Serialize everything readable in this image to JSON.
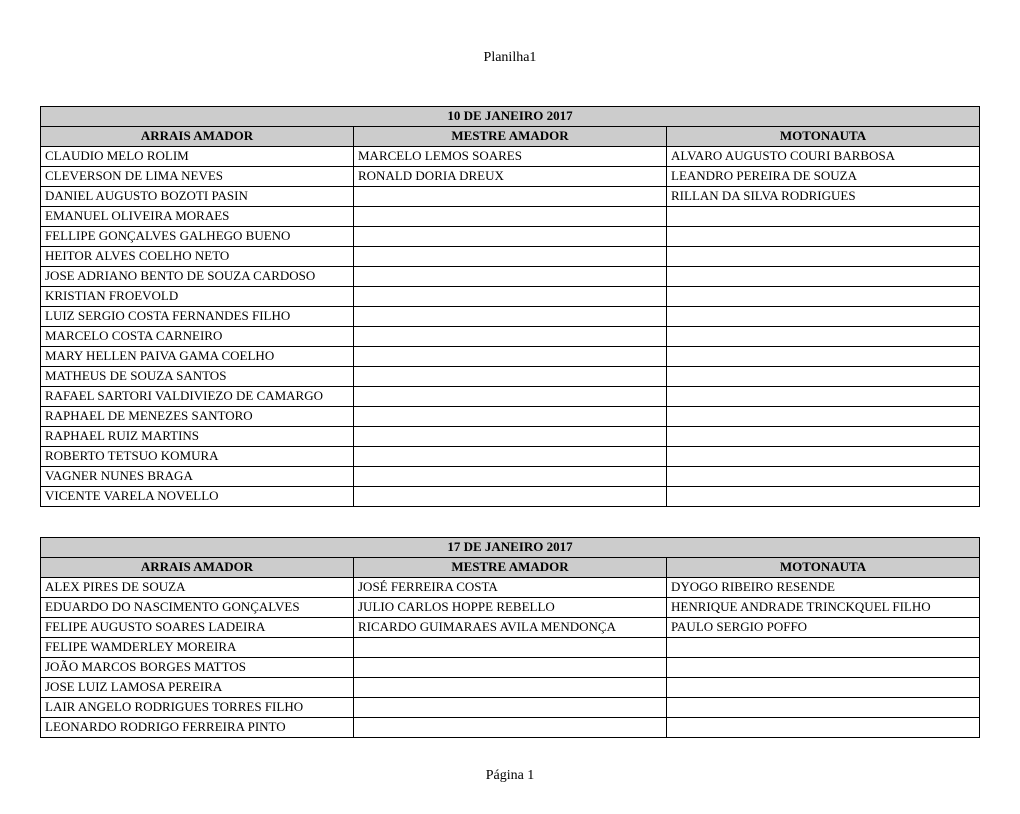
{
  "sheet_title": "Planilha1",
  "footer": "Página 1",
  "column_headers": [
    "ARRAIS AMADOR",
    "MESTRE AMADOR",
    "MOTONAUTA"
  ],
  "colors": {
    "header_bg": "#cccccc",
    "border": "#000000",
    "page_bg": "#ffffff",
    "text": "#000000"
  },
  "tables": [
    {
      "date": "10 DE JANEIRO 2017",
      "rows": [
        [
          "CLAUDIO MELO ROLIM",
          "MARCELO LEMOS SOARES",
          "ALVARO AUGUSTO COURI BARBOSA"
        ],
        [
          "CLEVERSON DE LIMA NEVES",
          "RONALD DORIA DREUX",
          "LEANDRO PEREIRA DE SOUZA"
        ],
        [
          "DANIEL AUGUSTO BOZOTI PASIN",
          "",
          "RILLAN DA SILVA RODRIGUES"
        ],
        [
          "EMANUEL OLIVEIRA MORAES",
          "",
          ""
        ],
        [
          "FELLIPE GONÇALVES GALHEGO BUENO",
          "",
          ""
        ],
        [
          "HEITOR ALVES COELHO NETO",
          "",
          ""
        ],
        [
          "JOSE ADRIANO BENTO DE SOUZA CARDOSO",
          "",
          ""
        ],
        [
          "KRISTIAN FROEVOLD",
          "",
          ""
        ],
        [
          "LUIZ SERGIO COSTA FERNANDES FILHO",
          "",
          ""
        ],
        [
          "MARCELO COSTA CARNEIRO",
          "",
          ""
        ],
        [
          "MARY HELLEN PAIVA GAMA COELHO",
          "",
          ""
        ],
        [
          "MATHEUS DE SOUZA SANTOS",
          "",
          ""
        ],
        [
          "RAFAEL SARTORI VALDIVIEZO DE CAMARGO",
          "",
          ""
        ],
        [
          "RAPHAEL DE MENEZES SANTORO",
          "",
          ""
        ],
        [
          "RAPHAEL RUIZ MARTINS",
          "",
          ""
        ],
        [
          "ROBERTO TETSUO KOMURA",
          "",
          ""
        ],
        [
          "VAGNER NUNES BRAGA",
          "",
          ""
        ],
        [
          "VICENTE VARELA NOVELLO",
          "",
          ""
        ]
      ]
    },
    {
      "date": "17 DE JANEIRO 2017",
      "rows": [
        [
          "ALEX PIRES DE SOUZA",
          "JOSÉ FERREIRA COSTA",
          "DYOGO RIBEIRO RESENDE"
        ],
        [
          "EDUARDO DO NASCIMENTO GONÇALVES",
          "JULIO CARLOS HOPPE REBELLO",
          "HENRIQUE ANDRADE TRINCKQUEL FILHO"
        ],
        [
          "FELIPE AUGUSTO SOARES LADEIRA",
          "RICARDO GUIMARAES AVILA MENDONÇA",
          "PAULO SERGIO POFFO"
        ],
        [
          "FELIPE WAMDERLEY MOREIRA",
          "",
          ""
        ],
        [
          "JOÃO MARCOS BORGES MATTOS",
          "",
          ""
        ],
        [
          "JOSE LUIZ LAMOSA PEREIRA",
          "",
          ""
        ],
        [
          "LAIR ANGELO RODRIGUES TORRES FILHO",
          "",
          ""
        ],
        [
          "LEONARDO RODRIGO FERREIRA PINTO",
          "",
          ""
        ]
      ]
    }
  ]
}
